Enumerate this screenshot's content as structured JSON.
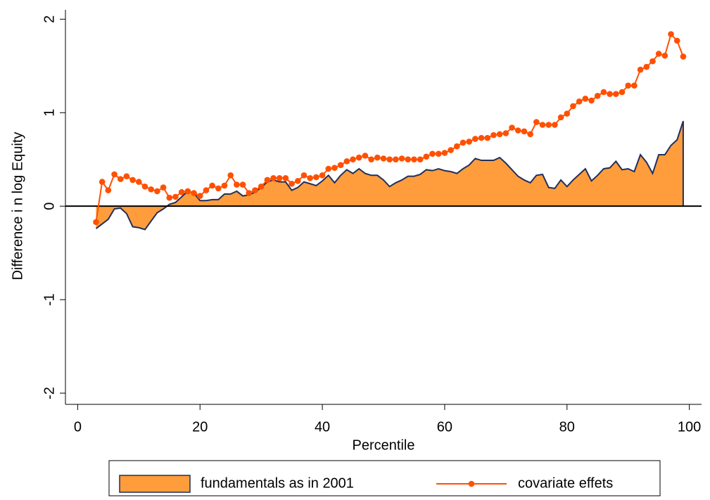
{
  "chart_data": {
    "type": "area_line",
    "y_label": "Difference i n log Equity",
    "x_label": "Percentile",
    "x": [
      3,
      4,
      5,
      6,
      7,
      8,
      9,
      10,
      11,
      12,
      13,
      14,
      15,
      16,
      17,
      18,
      19,
      20,
      21,
      22,
      23,
      24,
      25,
      26,
      27,
      28,
      29,
      30,
      31,
      32,
      33,
      34,
      35,
      36,
      37,
      38,
      39,
      40,
      41,
      42,
      43,
      44,
      45,
      46,
      47,
      48,
      49,
      50,
      51,
      52,
      53,
      54,
      55,
      56,
      57,
      58,
      59,
      60,
      61,
      62,
      63,
      64,
      65,
      66,
      67,
      68,
      69,
      70,
      71,
      72,
      73,
      74,
      75,
      76,
      77,
      78,
      79,
      80,
      81,
      82,
      83,
      84,
      85,
      86,
      87,
      88,
      89,
      90,
      91,
      92,
      93,
      94,
      95,
      96,
      97,
      98,
      99
    ],
    "series": [
      {
        "name": "fundamentals as in 2001",
        "kind": "area",
        "color": "#ff9d3c",
        "edge_color": "#1f2f5c",
        "values": [
          -0.24,
          -0.19,
          -0.14,
          -0.03,
          -0.02,
          -0.08,
          -0.22,
          -0.23,
          -0.25,
          -0.16,
          -0.07,
          -0.03,
          0.02,
          0.04,
          0.1,
          0.16,
          0.14,
          0.06,
          0.06,
          0.07,
          0.07,
          0.13,
          0.13,
          0.16,
          0.11,
          0.12,
          0.15,
          0.2,
          0.26,
          0.28,
          0.26,
          0.26,
          0.17,
          0.2,
          0.26,
          0.24,
          0.22,
          0.27,
          0.33,
          0.25,
          0.33,
          0.39,
          0.35,
          0.4,
          0.35,
          0.33,
          0.33,
          0.28,
          0.21,
          0.25,
          0.28,
          0.32,
          0.32,
          0.34,
          0.39,
          0.38,
          0.4,
          0.38,
          0.37,
          0.35,
          0.4,
          0.44,
          0.51,
          0.49,
          0.49,
          0.49,
          0.52,
          0.46,
          0.39,
          0.32,
          0.28,
          0.25,
          0.33,
          0.34,
          0.2,
          0.19,
          0.28,
          0.21,
          0.28,
          0.34,
          0.4,
          0.27,
          0.33,
          0.4,
          0.41,
          0.48,
          0.39,
          0.4,
          0.37,
          0.55,
          0.47,
          0.35,
          0.55,
          0.55,
          0.65,
          0.71,
          0.91
        ]
      },
      {
        "name": "covariate effets",
        "kind": "line",
        "color": "#ff5000",
        "values": [
          -0.17,
          0.26,
          0.17,
          0.34,
          0.29,
          0.32,
          0.28,
          0.26,
          0.21,
          0.18,
          0.16,
          0.2,
          0.09,
          0.1,
          0.15,
          0.16,
          0.14,
          0.11,
          0.17,
          0.22,
          0.19,
          0.22,
          0.33,
          0.23,
          0.23,
          0.14,
          0.17,
          0.21,
          0.28,
          0.3,
          0.3,
          0.3,
          0.24,
          0.27,
          0.33,
          0.3,
          0.31,
          0.33,
          0.4,
          0.41,
          0.44,
          0.48,
          0.5,
          0.52,
          0.54,
          0.5,
          0.52,
          0.51,
          0.5,
          0.5,
          0.51,
          0.5,
          0.5,
          0.5,
          0.53,
          0.56,
          0.56,
          0.57,
          0.6,
          0.64,
          0.68,
          0.69,
          0.72,
          0.73,
          0.73,
          0.76,
          0.77,
          0.78,
          0.84,
          0.81,
          0.8,
          0.77,
          0.9,
          0.87,
          0.87,
          0.87,
          0.95,
          0.99,
          1.07,
          1.12,
          1.15,
          1.13,
          1.18,
          1.22,
          1.2,
          1.2,
          1.22,
          1.29,
          1.29,
          1.46,
          1.49,
          1.55,
          1.63,
          1.61,
          1.84,
          1.77,
          1.6
        ]
      }
    ],
    "xlim": [
      -2,
      102
    ],
    "xticks": [
      0,
      20,
      40,
      60,
      80,
      100
    ],
    "ylim": [
      -2.12,
      2.1
    ],
    "yticks": [
      -2,
      -1,
      0,
      1,
      2
    ],
    "hline": 0,
    "legend": "bottom"
  }
}
